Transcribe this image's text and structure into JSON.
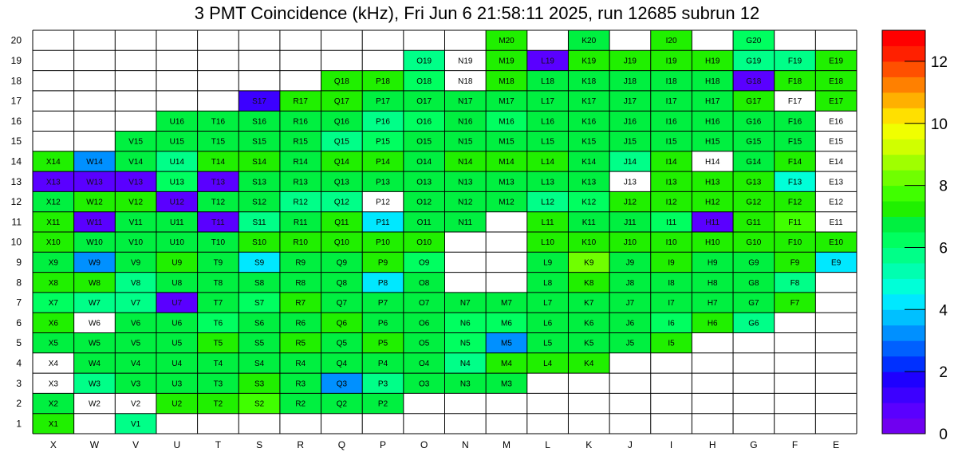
{
  "chart_data": {
    "type": "heatmap",
    "title": "3 PMT Coincidence (kHz), Fri Jun  6 21:58:11 2025, run 12685 subrun 12",
    "x_labels": [
      "X",
      "W",
      "V",
      "U",
      "T",
      "S",
      "R",
      "Q",
      "P",
      "O",
      "N",
      "M",
      "L",
      "K",
      "J",
      "I",
      "H",
      "G",
      "F",
      "E"
    ],
    "y_labels": [
      "1",
      "2",
      "3",
      "4",
      "5",
      "6",
      "7",
      "8",
      "9",
      "10",
      "11",
      "12",
      "13",
      "14",
      "15",
      "16",
      "17",
      "18",
      "19",
      "20"
    ],
    "zlim": [
      0,
      13
    ],
    "z_ticks": [
      "0",
      "2",
      "4",
      "6",
      "8",
      "10",
      "12"
    ],
    "palette": [
      "#7000f0",
      "#5a00ff",
      "#3c00ff",
      "#1e00ff",
      "#0030ff",
      "#0060ff",
      "#0090ff",
      "#00c0ff",
      "#00e8ff",
      "#00ffd8",
      "#00ffb0",
      "#00ff88",
      "#00ff60",
      "#00f040",
      "#20f000",
      "#40ff00",
      "#70ff00",
      "#a0ff00",
      "#d0ff00",
      "#f0ff00",
      "#ffe000",
      "#ffb000",
      "#ff8000",
      "#ff5000",
      "#ff2000",
      "#ff0000"
    ],
    "rows": {
      "20": [
        null,
        null,
        null,
        null,
        null,
        null,
        null,
        null,
        null,
        null,
        null,
        7.0,
        null,
        6.6,
        null,
        7.0,
        null,
        6.3,
        null,
        null
      ],
      "19": [
        null,
        null,
        null,
        null,
        null,
        null,
        null,
        null,
        null,
        5.5,
        0,
        7.0,
        0.8,
        7.0,
        7.3,
        7.0,
        7.0,
        5.8,
        5.8,
        7.0
      ],
      "18": [
        null,
        null,
        null,
        null,
        null,
        null,
        null,
        7.0,
        7.0,
        6.4,
        0,
        7.0,
        6.6,
        6.6,
        6.6,
        6.6,
        6.6,
        0.6,
        7.0,
        7.0
      ],
      "17": [
        null,
        null,
        null,
        null,
        null,
        1.2,
        7.0,
        7.0,
        6.6,
        6.6,
        6.6,
        6.6,
        6.6,
        6.6,
        6.6,
        6.6,
        6.6,
        7.0,
        0,
        7.0
      ],
      "16": [
        null,
        null,
        null,
        6.6,
        6.6,
        6.6,
        6.6,
        6.6,
        5.8,
        6.3,
        6.6,
        6.3,
        6.6,
        6.6,
        6.6,
        6.6,
        6.6,
        6.6,
        6.6,
        0
      ],
      "15": [
        null,
        null,
        6.6,
        6.6,
        6.6,
        6.6,
        6.6,
        5.5,
        6.3,
        6.6,
        6.6,
        6.6,
        6.6,
        6.6,
        6.6,
        6.6,
        6.6,
        6.6,
        6.6,
        0
      ],
      "14": [
        7.3,
        3.1,
        6.6,
        5.8,
        7.0,
        7.0,
        6.6,
        7.0,
        7.0,
        6.6,
        7.0,
        7.0,
        7.0,
        6.6,
        5.8,
        7.0,
        0,
        6.6,
        7.0,
        0
      ],
      "13": [
        0.8,
        0.8,
        0.8,
        6.3,
        0.8,
        6.6,
        6.6,
        6.6,
        6.6,
        6.6,
        6.6,
        6.6,
        6.6,
        6.6,
        0,
        7.0,
        7.0,
        7.0,
        4.6,
        0
      ],
      "12": [
        6.6,
        7.0,
        7.0,
        0.8,
        6.6,
        6.6,
        5.8,
        5.8,
        0,
        6.6,
        6.6,
        6.6,
        5.8,
        6.3,
        7.0,
        7.0,
        7.0,
        7.0,
        7.0,
        0
      ],
      "11": [
        7.0,
        0.6,
        6.6,
        6.6,
        0.8,
        5.8,
        6.6,
        7.0,
        4.3,
        6.6,
        6.6,
        null,
        7.0,
        6.6,
        6.6,
        6.3,
        0.8,
        7.0,
        7.8,
        0
      ],
      "10": [
        7.0,
        6.6,
        6.6,
        6.6,
        6.6,
        7.0,
        7.0,
        7.0,
        7.0,
        7.0,
        null,
        null,
        7.0,
        7.0,
        7.0,
        7.0,
        7.0,
        7.0,
        7.0,
        7.0
      ],
      "9": [
        6.6,
        3.1,
        6.6,
        7.0,
        6.6,
        4.3,
        6.6,
        6.6,
        7.3,
        6.3,
        null,
        null,
        6.6,
        8.3,
        6.6,
        7.0,
        6.6,
        6.6,
        7.0,
        4.3
      ],
      "8": [
        7.0,
        7.0,
        5.5,
        6.6,
        6.6,
        6.6,
        6.6,
        6.6,
        4.3,
        6.6,
        null,
        null,
        6.6,
        7.0,
        6.6,
        6.6,
        6.6,
        6.6,
        5.5,
        null
      ],
      "7": [
        6.3,
        5.8,
        5.8,
        0.8,
        6.6,
        6.3,
        7.0,
        6.6,
        6.6,
        6.6,
        6.6,
        6.6,
        6.6,
        6.6,
        6.6,
        6.6,
        6.6,
        6.6,
        7.0,
        null
      ],
      "6": [
        7.0,
        0,
        6.6,
        6.6,
        6.3,
        6.6,
        6.6,
        7.3,
        6.6,
        6.6,
        6.3,
        6.3,
        6.6,
        6.6,
        6.6,
        6.3,
        7.0,
        5.5,
        null,
        null
      ],
      "5": [
        6.6,
        6.6,
        6.6,
        6.6,
        7.0,
        6.6,
        7.0,
        6.6,
        7.0,
        6.6,
        6.3,
        3.1,
        6.6,
        6.6,
        6.6,
        7.0,
        null,
        null,
        null,
        null
      ],
      "4": [
        0,
        6.6,
        6.6,
        6.6,
        6.6,
        6.6,
        6.6,
        6.6,
        6.6,
        6.6,
        5.5,
        7.0,
        7.0,
        7.0,
        null,
        null,
        null,
        null,
        null,
        null
      ],
      "3": [
        0,
        5.8,
        6.6,
        6.6,
        6.6,
        7.3,
        6.6,
        3.1,
        5.5,
        6.6,
        6.6,
        6.6,
        null,
        null,
        null,
        null,
        null,
        null,
        null,
        null
      ],
      "2": [
        6.6,
        0,
        0,
        7.0,
        7.0,
        7.8,
        6.6,
        6.6,
        6.6,
        null,
        null,
        null,
        null,
        null,
        null,
        null,
        null,
        null,
        null,
        null
      ],
      "1": [
        7.0,
        null,
        5.8,
        null,
        null,
        null,
        null,
        null,
        null,
        null,
        null,
        null,
        null,
        null,
        null,
        null,
        null,
        null,
        null,
        null
      ]
    }
  }
}
